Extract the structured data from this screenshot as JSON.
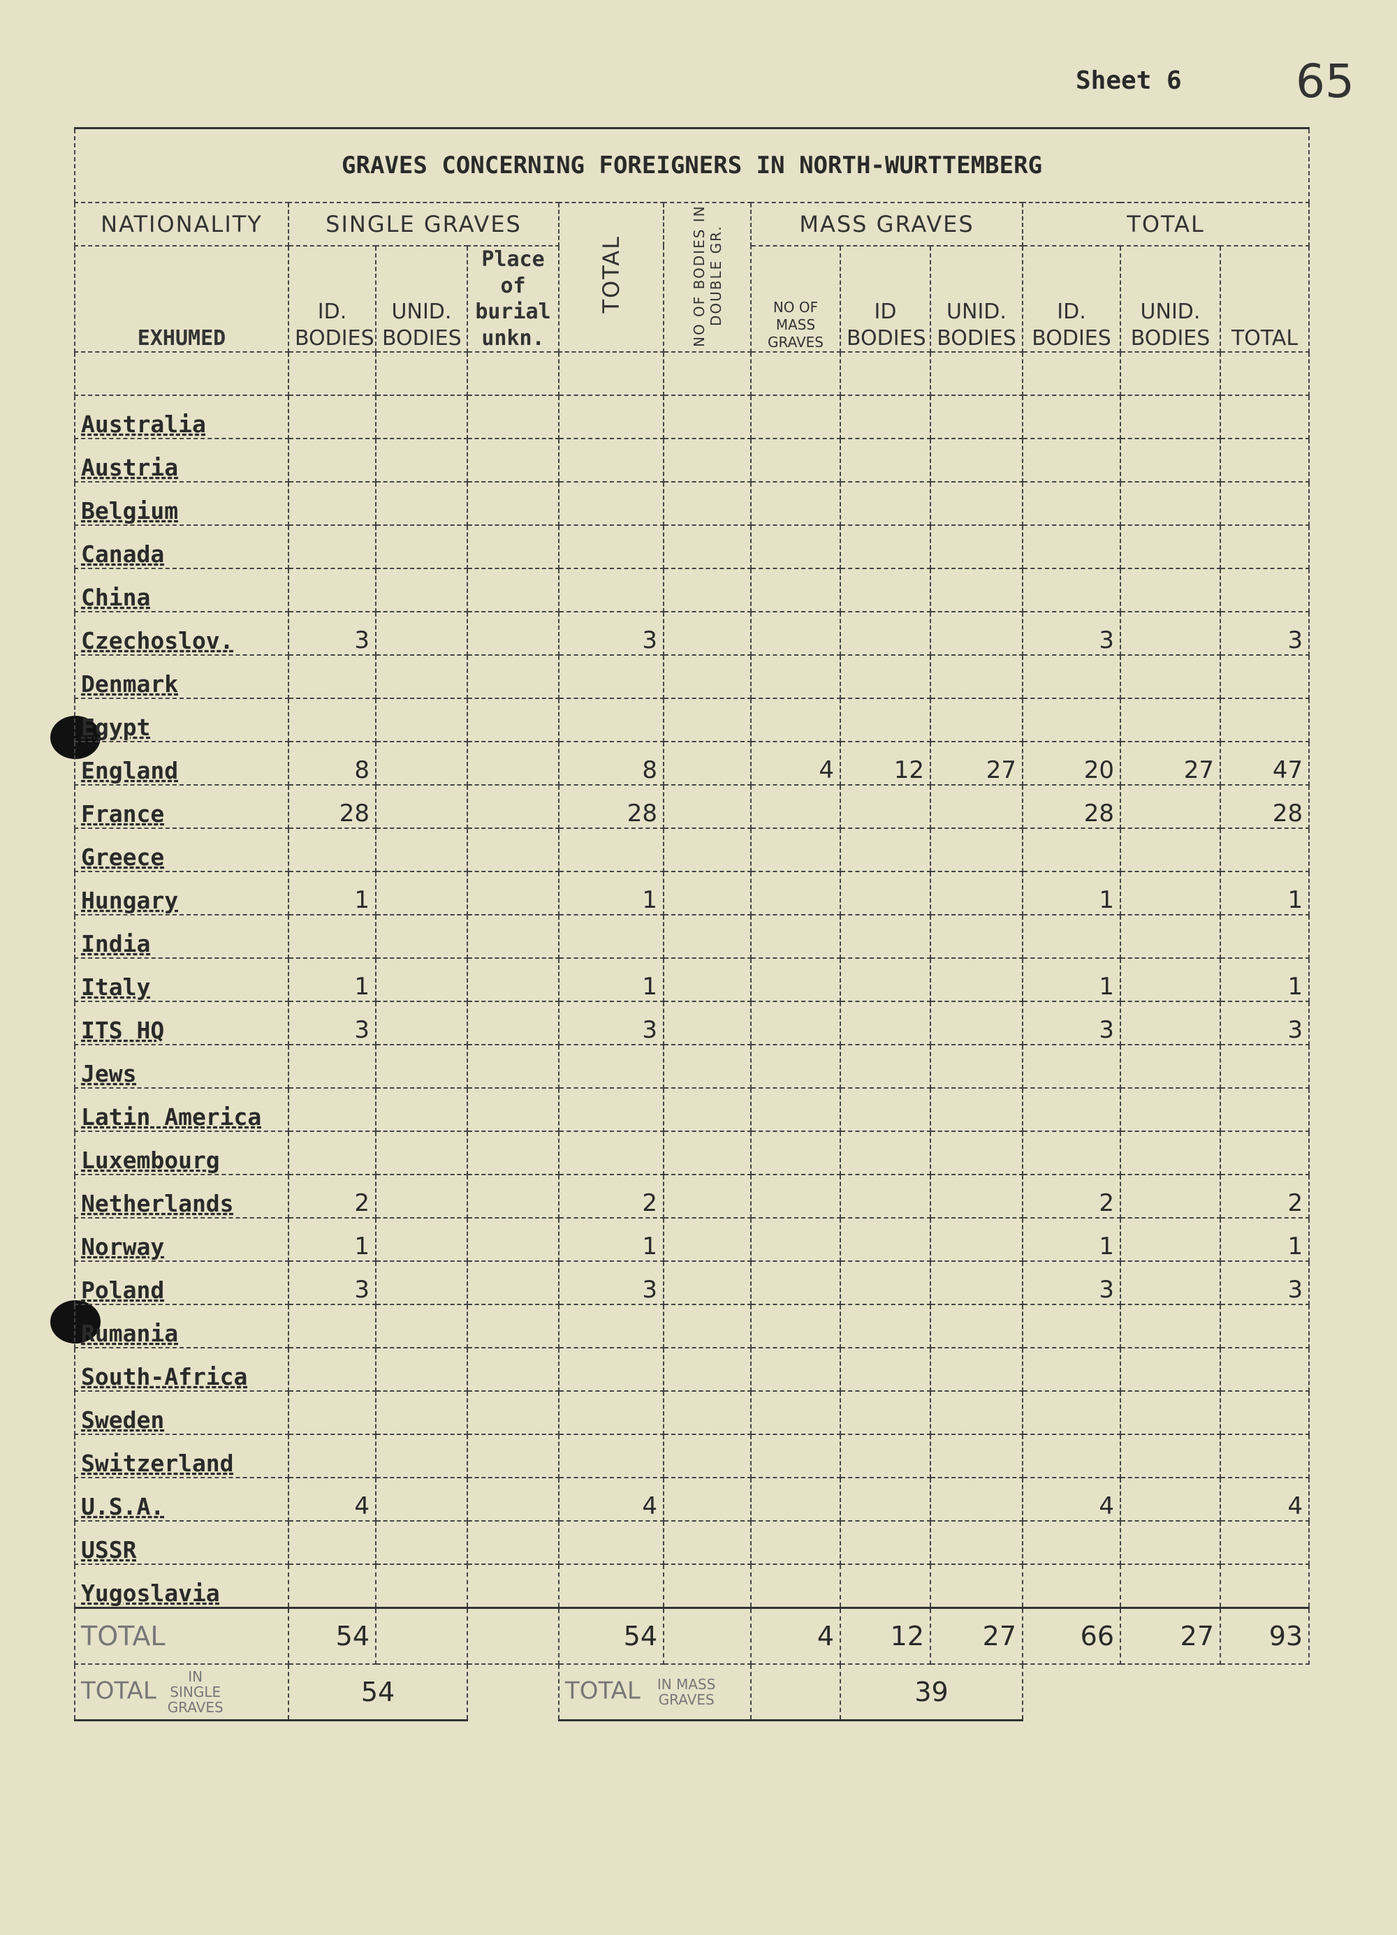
{
  "sheet_label": "Sheet 6",
  "page_number": "65",
  "title": "GRAVES CONCERNING FOREIGNERS IN NORTH-WURTTEMBERG",
  "headers": {
    "nationality": "NATIONALITY",
    "exhumed": "EXHUMED",
    "single_graves": "SINGLE GRAVES",
    "id_bodies": "ID. BODIES",
    "unid_bodies": "UNID. BODIES",
    "place_unknown": "Place of burial unkn.",
    "total_vertical": "TOTAL",
    "no_bodies_double": "NO OF BODIES IN DOUBLE GR.",
    "mass_graves": "MASS GRAVES",
    "no_of_mass_graves": "NO OF MASS GRAVES",
    "mass_id_bodies": "ID BODIES",
    "mass_unid_bodies": "UNID. BODIES",
    "total_group": "TOTAL",
    "total_id_bodies": "ID. BODIES",
    "total_unid_bodies": "UNID. BODIES",
    "total_total": "TOTAL"
  },
  "rows": [
    {
      "country": "Australia",
      "c": [
        "",
        "",
        "",
        "",
        "",
        "",
        "",
        "",
        "",
        "",
        ""
      ]
    },
    {
      "country": "Austria",
      "c": [
        "",
        "",
        "",
        "",
        "",
        "",
        "",
        "",
        "",
        "",
        ""
      ]
    },
    {
      "country": "Belgium",
      "c": [
        "",
        "",
        "",
        "",
        "",
        "",
        "",
        "",
        "",
        "",
        ""
      ]
    },
    {
      "country": "Canada",
      "c": [
        "",
        "",
        "",
        "",
        "",
        "",
        "",
        "",
        "",
        "",
        ""
      ]
    },
    {
      "country": "China",
      "c": [
        "",
        "",
        "",
        "",
        "",
        "",
        "",
        "",
        "",
        "",
        ""
      ]
    },
    {
      "country": "Czechoslov.",
      "c": [
        "3",
        "",
        "",
        "3",
        "",
        "",
        "",
        "",
        "3",
        "",
        "3"
      ]
    },
    {
      "country": "Denmark",
      "c": [
        "",
        "",
        "",
        "",
        "",
        "",
        "",
        "",
        "",
        "",
        ""
      ]
    },
    {
      "country": "Egypt",
      "c": [
        "",
        "",
        "",
        "",
        "",
        "",
        "",
        "",
        "",
        "",
        ""
      ]
    },
    {
      "country": "England",
      "c": [
        "8",
        "",
        "",
        "8",
        "",
        "4",
        "12",
        "27",
        "20",
        "27",
        "47"
      ]
    },
    {
      "country": "France",
      "c": [
        "28",
        "",
        "",
        "28",
        "",
        "",
        "",
        "",
        "28",
        "",
        "28"
      ]
    },
    {
      "country": "Greece",
      "c": [
        "",
        "",
        "",
        "",
        "",
        "",
        "",
        "",
        "",
        "",
        ""
      ]
    },
    {
      "country": "Hungary",
      "c": [
        "1",
        "",
        "",
        "1",
        "",
        "",
        "",
        "",
        "1",
        "",
        "1"
      ]
    },
    {
      "country": "India",
      "c": [
        "",
        "",
        "",
        "",
        "",
        "",
        "",
        "",
        "",
        "",
        ""
      ]
    },
    {
      "country": "Italy",
      "c": [
        "1",
        "",
        "",
        "1",
        "",
        "",
        "",
        "",
        "1",
        "",
        "1"
      ]
    },
    {
      "country": "ITS HQ",
      "c": [
        "3",
        "",
        "",
        "3",
        "",
        "",
        "",
        "",
        "3",
        "",
        "3"
      ]
    },
    {
      "country": "Jews",
      "c": [
        "",
        "",
        "",
        "",
        "",
        "",
        "",
        "",
        "",
        "",
        ""
      ]
    },
    {
      "country": "Latin America",
      "c": [
        "",
        "",
        "",
        "",
        "",
        "",
        "",
        "",
        "",
        "",
        ""
      ]
    },
    {
      "country": "Luxembourg",
      "c": [
        "",
        "",
        "",
        "",
        "",
        "",
        "",
        "",
        "",
        "",
        ""
      ]
    },
    {
      "country": "Netherlands",
      "c": [
        "2",
        "",
        "",
        "2",
        "",
        "",
        "",
        "",
        "2",
        "",
        "2"
      ]
    },
    {
      "country": "Norway",
      "c": [
        "1",
        "",
        "",
        "1",
        "",
        "",
        "",
        "",
        "1",
        "",
        "1"
      ]
    },
    {
      "country": "Poland",
      "c": [
        "3",
        "",
        "",
        "3",
        "",
        "",
        "",
        "",
        "3",
        "",
        "3"
      ]
    },
    {
      "country": "Rumania",
      "c": [
        "",
        "",
        "",
        "",
        "",
        "",
        "",
        "",
        "",
        "",
        ""
      ]
    },
    {
      "country": "South-Africa",
      "c": [
        "",
        "",
        "",
        "",
        "",
        "",
        "",
        "",
        "",
        "",
        ""
      ]
    },
    {
      "country": "Sweden",
      "c": [
        "",
        "",
        "",
        "",
        "",
        "",
        "",
        "",
        "",
        "",
        ""
      ]
    },
    {
      "country": "Switzerland",
      "c": [
        "",
        "",
        "",
        "",
        "",
        "",
        "",
        "",
        "",
        "",
        ""
      ]
    },
    {
      "country": "U.S.A.",
      "c": [
        "4",
        "",
        "",
        "4",
        "",
        "",
        "",
        "",
        "4",
        "",
        "4"
      ]
    },
    {
      "country": "USSR",
      "c": [
        "",
        "",
        "",
        "",
        "",
        "",
        "",
        "",
        "",
        "",
        ""
      ]
    },
    {
      "country": "Yugoslavia",
      "c": [
        "",
        "",
        "",
        "",
        "",
        "",
        "",
        "",
        "",
        "",
        ""
      ]
    }
  ],
  "totals": {
    "label": "TOTAL",
    "c": [
      "54",
      "",
      "",
      "54",
      "",
      "4",
      "12",
      "27",
      "66",
      "27",
      "93"
    ]
  },
  "summary": {
    "single_label": "TOTAL",
    "single_sub": "IN SINGLE GRAVES",
    "single_value": "54",
    "mass_label": "TOTAL",
    "mass_sub": "IN MASS GRAVES",
    "mass_value": "39"
  }
}
